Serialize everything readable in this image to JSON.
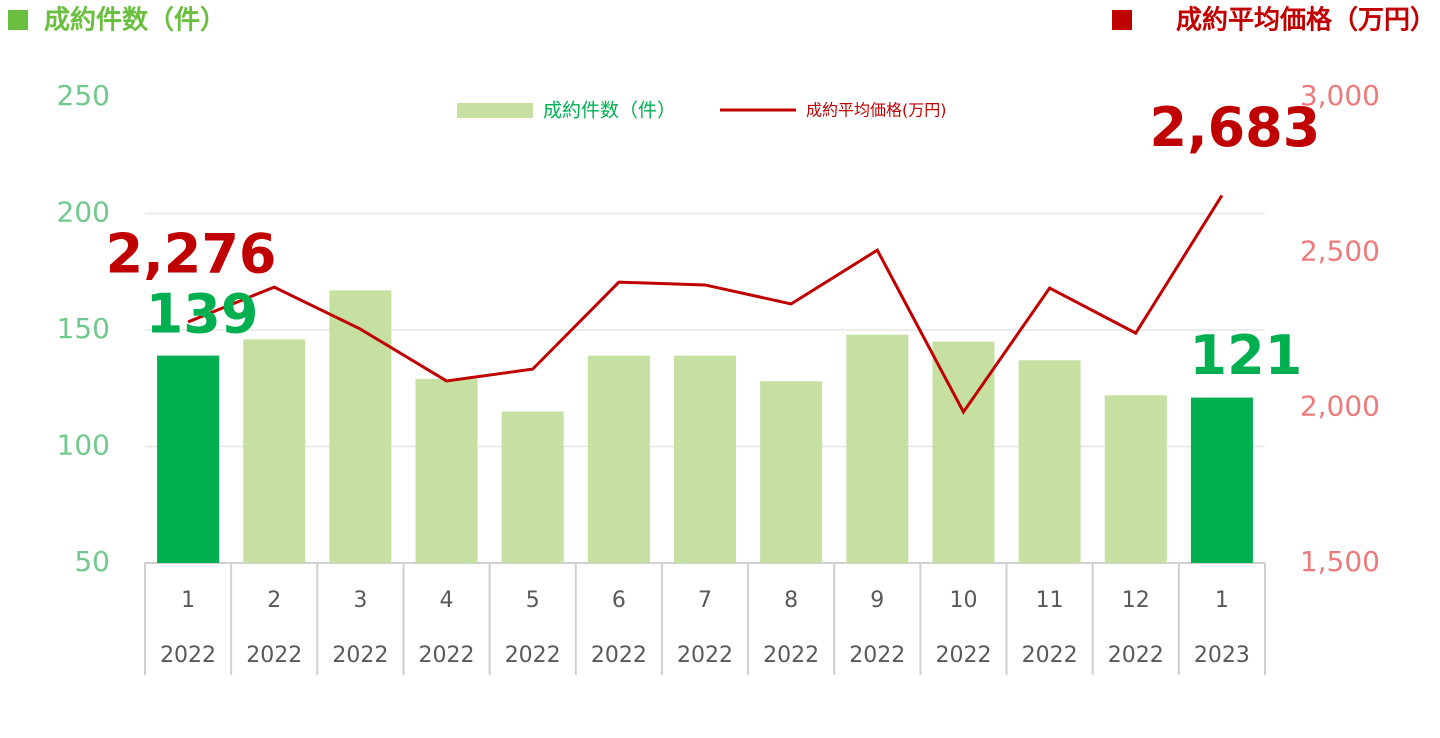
{
  "chart_data": {
    "type": "bar",
    "y_label": "成約件数（件）",
    "y2_label": "成約平均価格（万円）",
    "categories": [
      "1",
      "2",
      "3",
      "4",
      "5",
      "6",
      "7",
      "8",
      "9",
      "10",
      "11",
      "12",
      "1"
    ],
    "category_years": [
      "2022",
      "2022",
      "2022",
      "2022",
      "2022",
      "2022",
      "2022",
      "2022",
      "2022",
      "2022",
      "2022",
      "2022",
      "2023"
    ],
    "series": [
      {
        "name": "成約件数（件）",
        "type": "bar",
        "color": "#c5e0a0",
        "colors": [
          "#00b050",
          "#c5e0a0",
          "#c5e0a0",
          "#c5e0a0",
          "#c5e0a0",
          "#c5e0a0",
          "#c5e0a0",
          "#c5e0a0",
          "#c5e0a0",
          "#c5e0a0",
          "#c5e0a0",
          "#c5e0a0",
          "#00b050"
        ],
        "label_color": "#00b050",
        "values": [
          139,
          146,
          167,
          129,
          115,
          139,
          139,
          128,
          148,
          145,
          137,
          122,
          121
        ],
        "value_labels": [
          "139",
          null,
          null,
          null,
          null,
          null,
          null,
          null,
          null,
          null,
          null,
          null,
          "121"
        ]
      },
      {
        "name": "成約平均価格(万円)",
        "type": "line",
        "axis": "y2",
        "color": "#c00000",
        "label_color": "#c00000",
        "values": [
          2276,
          2388,
          2253,
          2086,
          2124,
          2404,
          2395,
          2334,
          2507,
          1986,
          2385,
          2240,
          2683
        ],
        "value_labels": [
          "2,276",
          null,
          null,
          null,
          null,
          null,
          null,
          null,
          null,
          null,
          null,
          null,
          "2,683"
        ]
      }
    ],
    "ylim": [
      50,
      250
    ],
    "yticks": [
      50,
      100,
      150,
      200,
      250
    ],
    "y2lim": [
      1500,
      3000
    ],
    "y2ticks": [
      {
        "value": 1500,
        "label": "1,500"
      },
      {
        "value": 2000,
        "label": "2,000"
      },
      {
        "value": 2500,
        "label": "2,500"
      },
      {
        "value": 3000,
        "label": "3,000"
      }
    ],
    "grid": true,
    "legend": "top"
  }
}
